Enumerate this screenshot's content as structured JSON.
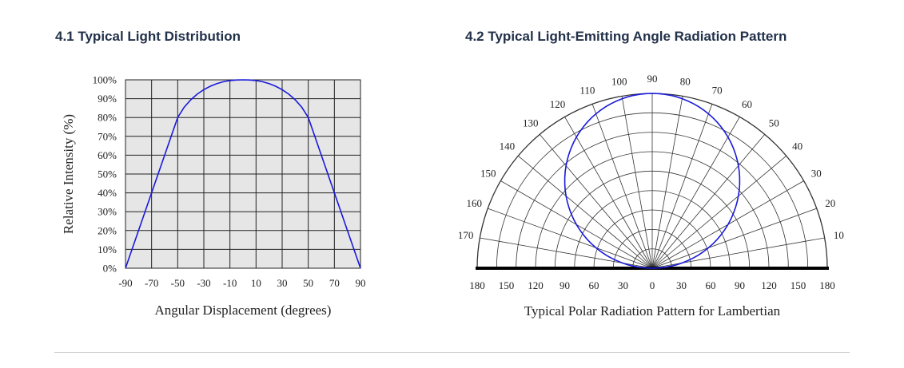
{
  "headings": {
    "left": "4.1 Typical Light Distribution",
    "right": "4.2 Typical Light-Emitting Angle Radiation Pattern"
  },
  "chart_data": [
    {
      "type": "line",
      "xlabel": "Angular Displacement (degrees)",
      "ylabel": "Relative Intensity (%)",
      "x_ticks": [
        "-90",
        "-70",
        "-50",
        "-30",
        "-10",
        "10",
        "30",
        "50",
        "70",
        "90"
      ],
      "x_tick_values": [
        -90,
        -70,
        -50,
        -30,
        -10,
        10,
        30,
        50,
        70,
        90
      ],
      "y_ticks": [
        "0%",
        "10%",
        "20%",
        "30%",
        "40%",
        "50%",
        "60%",
        "70%",
        "80%",
        "90%",
        "100%"
      ],
      "xlim": [
        -90,
        90
      ],
      "ylim": [
        0,
        100
      ],
      "grid": true,
      "series": [
        {
          "color": "#1a1adb",
          "x": [
            -90,
            -50,
            -45,
            -40,
            -35,
            -30,
            -25,
            -20,
            -15,
            -10,
            -5,
            0,
            5,
            10,
            15,
            20,
            25,
            30,
            35,
            40,
            45,
            50,
            90
          ],
          "y": [
            0,
            80,
            85.5,
            89.4,
            92.4,
            94.8,
            96.6,
            98.0,
            99.0,
            99.6,
            99.9,
            100,
            99.9,
            99.6,
            99.0,
            98.0,
            96.6,
            94.8,
            92.4,
            89.4,
            85.5,
            80,
            0
          ]
        }
      ],
      "colors": {
        "plot_background": "#e6e6e6",
        "grid": "#222222"
      }
    },
    {
      "type": "polar",
      "title": "Typical Polar Radiation Pattern for Lambertian",
      "angle_labels": [
        "10",
        "20",
        "30",
        "40",
        "50",
        "60",
        "70",
        "80",
        "90",
        "100",
        "110",
        "120",
        "130",
        "140",
        "150",
        "160",
        "170"
      ],
      "angle_values": [
        10,
        20,
        30,
        40,
        50,
        60,
        70,
        80,
        90,
        100,
        110,
        120,
        130,
        140,
        150,
        160,
        170
      ],
      "baseline_labels": [
        "180",
        "150",
        "120",
        "90",
        "60",
        "30",
        "0",
        "30",
        "60",
        "90",
        "120",
        "150",
        "180"
      ],
      "baseline_values": [
        -180,
        -150,
        -120,
        -90,
        -60,
        -30,
        0,
        30,
        60,
        90,
        120,
        150,
        180
      ],
      "radial_max": 180,
      "spoke_step_degrees": 10,
      "grid": true,
      "series": [
        {
          "color": "#1a1adb",
          "pattern": "lambertian",
          "peak_at": 90
        }
      ]
    }
  ]
}
